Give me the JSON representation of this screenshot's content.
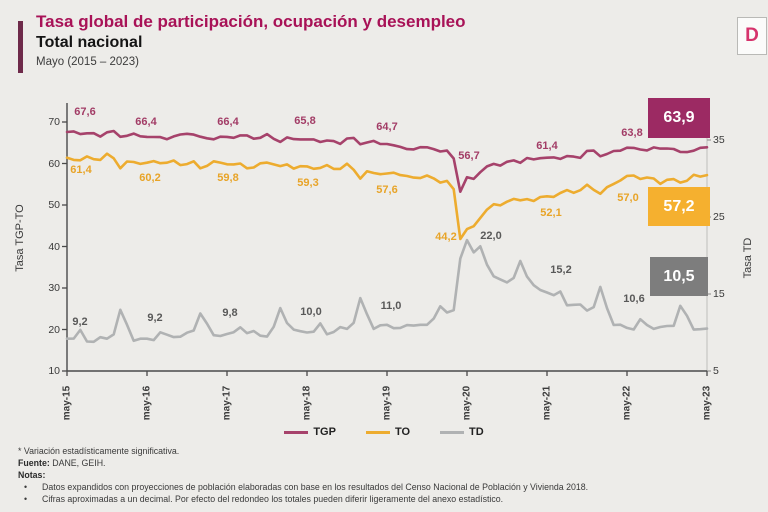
{
  "header": {
    "title": "Tasa global de participación, ocupación y desempleo",
    "subtitle": "Total nacional",
    "period": "Mayo (2015 – 2023)",
    "logo_letter": "D"
  },
  "chart_data": {
    "type": "line",
    "title": "Tasa global de participación, ocupación y desempleo",
    "subtitle": "Total nacional",
    "categories": [
      "may-15",
      "may-16",
      "may-17",
      "may-18",
      "may-19",
      "may-20",
      "may-21",
      "may-22",
      "may-23"
    ],
    "series": [
      {
        "name": "TGP",
        "color": "#a6426b",
        "box_color": "#9c2a63",
        "label_color": "#a23c66",
        "axis": "left",
        "values": [
          67.6,
          66.4,
          66.4,
          65.8,
          64.7,
          56.7,
          61.4,
          63.8,
          63.9
        ],
        "labels": [
          "67,6",
          "66,4",
          "66,4",
          "65,8",
          "64,7",
          "56,7",
          "61,4",
          "63,8",
          "63,9"
        ],
        "intermediate": {
          "50": 64.0,
          "52": 63.4,
          "54": 63.9,
          "56": 62.9,
          "57": 63.1,
          "58": 61.2,
          "59": 53.2,
          "61": 56.3,
          "62": 57.9,
          "63": 59.3,
          "64": 59.9,
          "65": 59.5,
          "66": 60.4,
          "81": 62.3,
          "92": 62.8
        }
      },
      {
        "name": "TO",
        "color": "#edac2f",
        "box_color": "#f5b02f",
        "label_color": "#e8a428",
        "axis": "left",
        "values": [
          61.4,
          60.2,
          59.8,
          59.3,
          57.6,
          44.2,
          52.1,
          57.0,
          57.2
        ],
        "labels": [
          "61,4",
          "60,2",
          "59,8",
          "59,3",
          "57,6",
          "44,2",
          "52,1",
          "57,0",
          "57,2"
        ],
        "intermediate": {
          "50": 57.2,
          "52": 56.6,
          "54": 57.1,
          "56": 55.4,
          "57": 55.8,
          "58": 53.8,
          "59": 41.8,
          "61": 44.9,
          "62": 46.9,
          "63": 48.9,
          "64": 50.2,
          "65": 49.9,
          "66": 50.8,
          "81": 54.3,
          "92": 55.4
        }
      },
      {
        "name": "TD",
        "color": "#b0b2b3",
        "box_color": "#7d7d7d",
        "label_color": "#595959",
        "axis": "right",
        "values": [
          9.2,
          9.2,
          9.8,
          10.0,
          11.0,
          22.0,
          15.2,
          10.6,
          10.5
        ],
        "labels": [
          "9,2",
          "9,2",
          "9,8",
          "10,0",
          "11,0",
          "22,0",
          "15,2",
          "10,6",
          "10,5"
        ],
        "intermediate": {
          "50": 10.6,
          "52": 10.9,
          "54": 11.0,
          "55": 11.8,
          "56": 13.4,
          "57": 12.6,
          "58": 12.9,
          "59": 19.6,
          "61": 20.4,
          "62": 21.2,
          "63": 18.8,
          "64": 17.3,
          "65": 16.9,
          "66": 16.5
        }
      }
    ],
    "left_axis": {
      "label": "Tasa TGP-TO",
      "ticks": [
        70,
        60,
        50,
        40,
        30,
        20,
        10
      ],
      "range": [
        10,
        73
      ]
    },
    "right_axis": {
      "label": "Tasa TD",
      "ticks": [
        35,
        25,
        15,
        5
      ],
      "range": [
        5,
        38
      ]
    },
    "legend_position": "bottom",
    "grid": false
  },
  "footer": {
    "significance": "* Variación estadísticamente significativa.",
    "source_label": "Fuente:",
    "source": "DANE, GEIH.",
    "notes_label": "Notas:",
    "bullet": "•",
    "notes": [
      "Datos expandidos con proyecciones de población elaboradas con base en los resultados del Censo Nacional de Población y Vivienda 2018.",
      "Cifras aproximadas a un decimal. Por efecto del redondeo los totales pueden diferir ligeramente del anexo estadístico."
    ]
  }
}
